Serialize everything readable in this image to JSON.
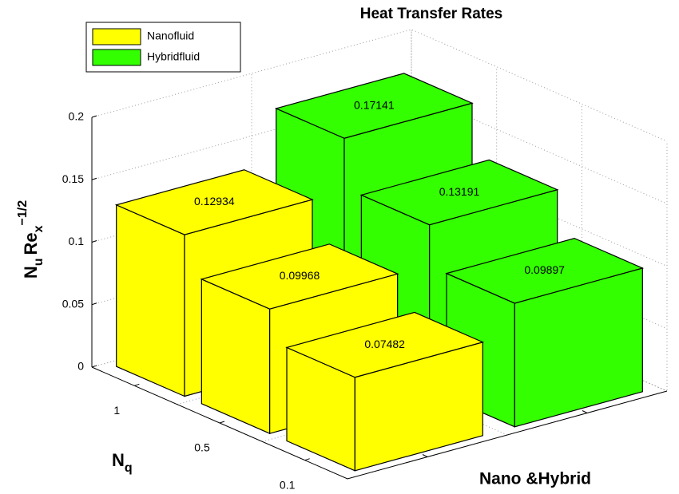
{
  "chart_data": {
    "type": "bar3d",
    "title": "Heat Transfer Rates",
    "x_label": "Nano &Hybrid",
    "z_label": [
      "N",
      "q"
    ],
    "y_label": [
      "N",
      "u",
      "Re",
      "x",
      "−1/2"
    ],
    "categories": [
      "1",
      "0.5",
      "0.1"
    ],
    "series": [
      {
        "name": "Nanofluid",
        "color": "#ffff00",
        "values": [
          0.12934,
          0.09968,
          0.07482
        ]
      },
      {
        "name": "Hybridfluid",
        "color": "#33ff00",
        "values": [
          0.17141,
          0.13191,
          0.09897
        ]
      }
    ],
    "ylim": [
      0,
      0.2
    ],
    "yticks": [
      0,
      0.05,
      0.1,
      0.15,
      0.2
    ],
    "grid": true
  }
}
